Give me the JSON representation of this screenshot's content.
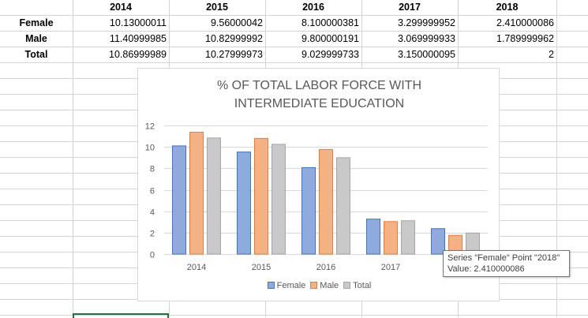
{
  "table": {
    "years": [
      "2014",
      "2015",
      "2016",
      "2017",
      "2018"
    ],
    "rows": [
      {
        "label": "Female",
        "values": [
          "10.13000011",
          "9.56000042",
          "8.100000381",
          "3.299999952",
          "2.410000086"
        ]
      },
      {
        "label": "Male",
        "values": [
          "11.40999985",
          "10.82999992",
          "9.800000191",
          "3.069999933",
          "1.789999962"
        ]
      },
      {
        "label": "Total",
        "values": [
          "10.86999989",
          "10.27999973",
          "9.029999733",
          "3.150000095",
          "2"
        ]
      }
    ]
  },
  "chart_data": {
    "type": "bar",
    "title_lines": [
      "% OF TOTAL LABOR FORCE WITH",
      "INTERMEDIATE EDUCATION"
    ],
    "categories": [
      "2014",
      "2015",
      "2016",
      "2017",
      "2018"
    ],
    "visible_category_labels": [
      "2014",
      "2015",
      "2016",
      "2017"
    ],
    "series": [
      {
        "name": "Female",
        "values": [
          10.13000011,
          9.56000042,
          8.100000381,
          3.299999952,
          2.410000086
        ],
        "color": "#8FAADC",
        "stroke": "#4472C4"
      },
      {
        "name": "Male",
        "values": [
          11.40999985,
          10.82999992,
          9.800000191,
          3.069999933,
          1.789999962
        ],
        "color": "#F4B183",
        "stroke": "#ED7D31"
      },
      {
        "name": "Total",
        "values": [
          10.86999989,
          10.27999973,
          9.029999733,
          3.150000095,
          2
        ],
        "color": "#C9C9C9",
        "stroke": "#A5A5A5"
      }
    ],
    "yticks": [
      "0",
      "2",
      "4",
      "6",
      "8",
      "10",
      "12"
    ],
    "ylim": [
      0,
      12
    ],
    "grid": true,
    "legend": "bottom"
  },
  "tooltip": {
    "line1": "Series \"Female\" Point \"2018\"",
    "line2": "Value: 2.410000086"
  }
}
